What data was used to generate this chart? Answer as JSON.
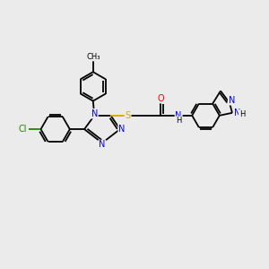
{
  "background_color": "#ebebeb",
  "bond_color": "#000000",
  "atom_colors": {
    "N": "#0000ff",
    "O": "#ff0000",
    "S": "#ccaa00",
    "Cl": "#228800",
    "H": "#000000",
    "C": "#000000"
  },
  "figsize": [
    3.0,
    3.0
  ],
  "dpi": 100
}
